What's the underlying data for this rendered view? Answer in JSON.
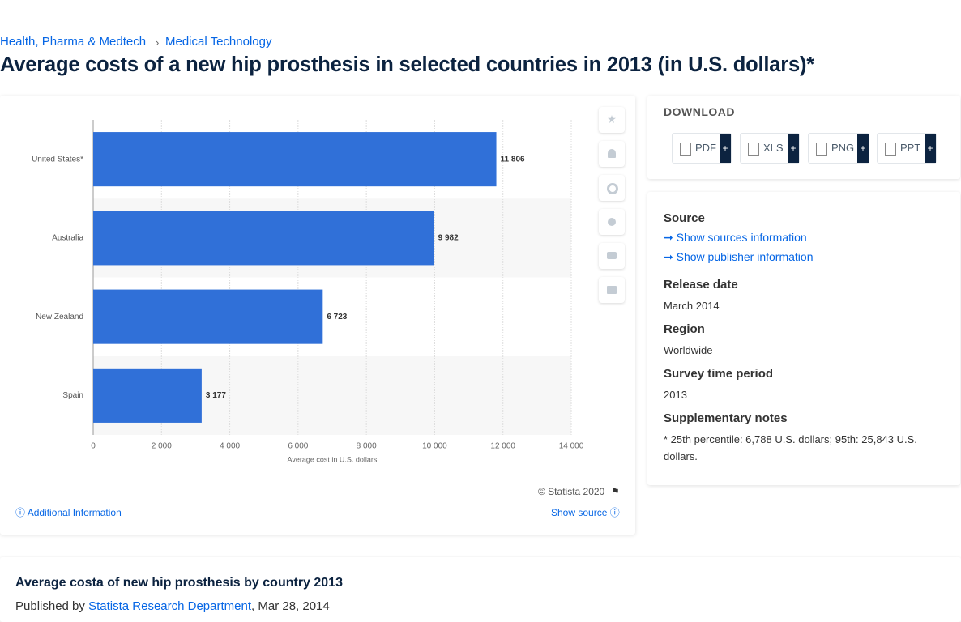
{
  "breadcrumb": [
    "Health, Pharma & Medtech",
    "Medical Technology"
  ],
  "title": "Average costs of a new hip prosthesis in selected countries in 2013 (in U.S. dollars)*",
  "chart_data": {
    "type": "bar",
    "orientation": "horizontal",
    "categories": [
      "United States*",
      "Australia",
      "New Zealand",
      "Spain"
    ],
    "values": [
      11806,
      9982,
      6723,
      3177
    ],
    "value_labels": [
      "11 806",
      "9 982",
      "6 723",
      "3 177"
    ],
    "color": "#3070d8",
    "xlabel": "Average cost in U.S. dollars",
    "xlim": [
      0,
      14000
    ],
    "xticks": [
      0,
      {
        "value": 2000,
        "label": "2 000"
      },
      {
        "value": 4000,
        "label": "4 000"
      },
      {
        "value": 6000,
        "label": "6 000"
      },
      {
        "value": 8000,
        "label": "8 000"
      },
      {
        "value": 10000,
        "label": "10 000"
      },
      {
        "value": 12000,
        "label": "12 000"
      },
      {
        "value": 14000,
        "label": "14 000"
      }
    ],
    "grid": true,
    "copyright": "© Statista 2020"
  },
  "chart_footer": {
    "additional": "Additional Information",
    "show_source": "Show source"
  },
  "download": {
    "heading": "DOWNLOAD",
    "buttons": [
      {
        "label": "PDF",
        "plus": "+"
      },
      {
        "label": "XLS",
        "plus": "+"
      },
      {
        "label": "PNG",
        "plus": "+"
      },
      {
        "label": "PPT",
        "plus": "+"
      }
    ]
  },
  "details": {
    "source_heading": "Source",
    "source_link": "Show sources information",
    "publisher_link": "Show publisher information",
    "items": [
      {
        "label": "Release date",
        "value": "March 2014"
      },
      {
        "label": "Region",
        "value": "Worldwide"
      },
      {
        "label": "Survey time period",
        "value": "2013"
      },
      {
        "label": "Supplementary notes",
        "value": "* 25th percentile: 6,788 U.S. dollars; 95th: 25,843 U.S. dollars."
      }
    ]
  },
  "article": {
    "title": "Average costa of new hip prosthesis by country 2013",
    "published_by": "Published by",
    "author": "Statista Research Department",
    "date": ", Mar 28, 2014"
  }
}
